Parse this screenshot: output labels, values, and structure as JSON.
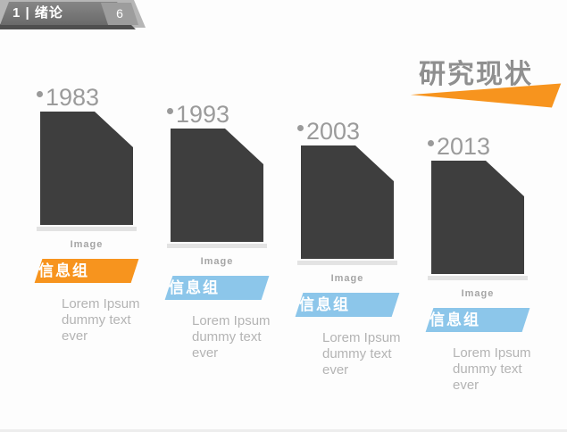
{
  "slide": {
    "header": {
      "section_label": "1 | 绪论",
      "page_number": "6"
    },
    "title": "研究现状",
    "colors": {
      "accent_orange": "#F7941E",
      "accent_blue": "#8CC6EA",
      "photo_dark": "#3E3E3E",
      "header_gray": "#717171",
      "text_gray": "#9b9b9b"
    },
    "timeline": {
      "items": [
        {
          "year": "1983",
          "image_label": "Image",
          "badge_label": "信息组",
          "badge_color": "#F7941E",
          "desc_line1": "Lorem Ipsum",
          "desc_line2": "dummy text ever"
        },
        {
          "year": "1993",
          "image_label": "Image",
          "badge_label": "信息组",
          "badge_color": "#8CC6EA",
          "desc_line1": "Lorem Ipsum",
          "desc_line2": "dummy text ever"
        },
        {
          "year": "2003",
          "image_label": "Image",
          "badge_label": "信息组",
          "badge_color": "#8CC6EA",
          "desc_line1": "Lorem Ipsum",
          "desc_line2": "dummy text ever"
        },
        {
          "year": "2013",
          "image_label": "Image",
          "badge_label": "信息组",
          "badge_color": "#8CC6EA",
          "desc_line1": "Lorem Ipsum",
          "desc_line2": "dummy text ever"
        }
      ]
    }
  }
}
